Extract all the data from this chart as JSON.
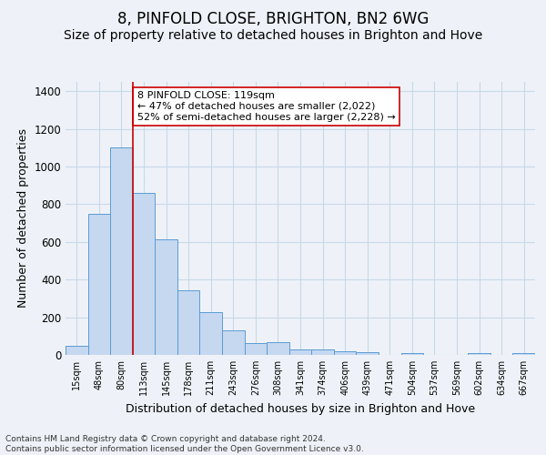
{
  "title": "8, PINFOLD CLOSE, BRIGHTON, BN2 6WG",
  "subtitle": "Size of property relative to detached houses in Brighton and Hove",
  "xlabel": "Distribution of detached houses by size in Brighton and Hove",
  "ylabel": "Number of detached properties",
  "categories": [
    "15sqm",
    "48sqm",
    "80sqm",
    "113sqm",
    "145sqm",
    "178sqm",
    "211sqm",
    "243sqm",
    "276sqm",
    "308sqm",
    "341sqm",
    "374sqm",
    "406sqm",
    "439sqm",
    "471sqm",
    "504sqm",
    "537sqm",
    "569sqm",
    "602sqm",
    "634sqm",
    "667sqm"
  ],
  "values": [
    48,
    750,
    1100,
    860,
    615,
    342,
    228,
    132,
    65,
    68,
    28,
    28,
    20,
    15,
    0,
    12,
    0,
    0,
    12,
    0,
    12
  ],
  "bar_color": "#c5d8f0",
  "bar_edge_color": "#5b9bd5",
  "grid_color": "#c8d8e8",
  "background_color": "#eef2f8",
  "vline_x_index": 2.5,
  "vline_color": "#cc0000",
  "annotation_text": "8 PINFOLD CLOSE: 119sqm\n← 47% of detached houses are smaller (2,022)\n52% of semi-detached houses are larger (2,228) →",
  "annotation_box_color": "#ffffff",
  "annotation_box_edge": "#cc0000",
  "ylim": [
    0,
    1450
  ],
  "footnote": "Contains HM Land Registry data © Crown copyright and database right 2024.\nContains public sector information licensed under the Open Government Licence v3.0.",
  "title_fontsize": 12,
  "subtitle_fontsize": 10,
  "xlabel_fontsize": 9,
  "ylabel_fontsize": 9,
  "annot_fontsize": 8,
  "footnote_fontsize": 6.5
}
